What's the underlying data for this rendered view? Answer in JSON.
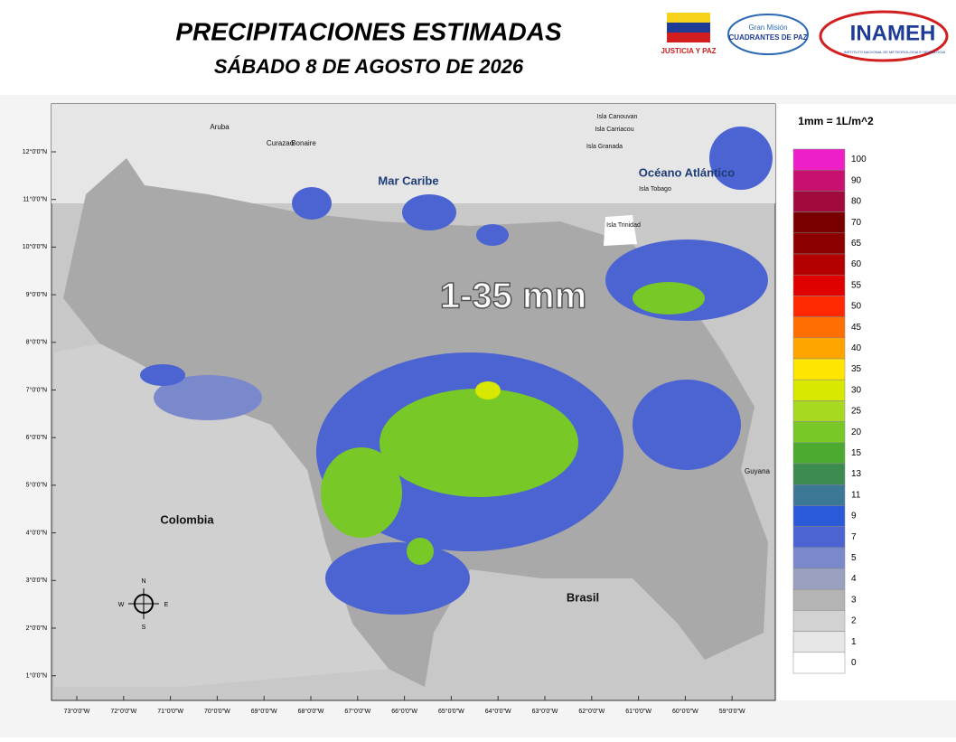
{
  "header": {
    "title": "PRECIPITACIONES ESTIMADAS",
    "subtitle": "SÁBADO 8  DE AGOSTO DE 2026"
  },
  "logos": {
    "justicia": "JUSTICIA Y PAZ",
    "mision_top": "Gran Misión",
    "mision": "CUADRANTES DE PAZ",
    "inameh": "INAMEH",
    "inameh_full": "INSTITUTO NACIONAL DE METEOROLOGIA E HIDROLOGIA"
  },
  "map": {
    "headline": "1-35 mm",
    "labels": [
      "Aruba",
      "Curazao",
      "Bonaire",
      "Mar Caribe",
      "Océano Atlántico",
      "Isla Canouvan",
      "Isla Carriacou",
      "Isla Granada",
      "Isla Tobago",
      "Isla Trinidad",
      "Colombia",
      "Brasil",
      "Guyana"
    ],
    "lat_ticks": [
      "12°0'0\"N",
      "11°0'0\"N",
      "10°0'0\"N",
      "9°0'0\"N",
      "8°0'0\"N",
      "7°0'0\"N",
      "6°0'0\"N",
      "5°0'0\"N",
      "4°0'0\"N",
      "3°0'0\"N",
      "2°0'0\"N",
      "1°0'0\"N"
    ],
    "lon_ticks": [
      "73°0'0\"W",
      "72°0'0\"W",
      "71°0'0\"W",
      "70°0'0\"W",
      "69°0'0\"W",
      "68°0'0\"W",
      "67°0'0\"W",
      "66°0'0\"W",
      "65°0'0\"W",
      "64°0'0\"W",
      "63°0'0\"W",
      "62°0'0\"W",
      "61°0'0\"W",
      "60°0'0\"W",
      "59°0'0\"W"
    ],
    "compass": [
      "N",
      "S",
      "E",
      "W"
    ]
  },
  "legend": {
    "title": "1mm = 1L/m^2",
    "levels": [
      {
        "label": "100",
        "color": "#ee1fc6"
      },
      {
        "label": "90",
        "color": "#c8106e"
      },
      {
        "label": "80",
        "color": "#a00a3c"
      },
      {
        "label": "70",
        "color": "#780000"
      },
      {
        "label": "65",
        "color": "#8c0000"
      },
      {
        "label": "60",
        "color": "#b40000"
      },
      {
        "label": "55",
        "color": "#e00000"
      },
      {
        "label": "50",
        "color": "#ff2800"
      },
      {
        "label": "45",
        "color": "#ff6e00"
      },
      {
        "label": "40",
        "color": "#ffa500"
      },
      {
        "label": "35",
        "color": "#ffe600"
      },
      {
        "label": "30",
        "color": "#d8e800"
      },
      {
        "label": "25",
        "color": "#a8d820"
      },
      {
        "label": "20",
        "color": "#78c828"
      },
      {
        "label": "15",
        "color": "#4caa30"
      },
      {
        "label": "13",
        "color": "#3c8c50"
      },
      {
        "label": "11",
        "color": "#3c7896"
      },
      {
        "label": "9",
        "color": "#2a5ad8"
      },
      {
        "label": "7",
        "color": "#4b64d2"
      },
      {
        "label": "5",
        "color": "#7a88cc"
      },
      {
        "label": "4",
        "color": "#9aa0c0"
      },
      {
        "label": "3",
        "color": "#b4b4b4"
      },
      {
        "label": "2",
        "color": "#d2d2d2"
      },
      {
        "label": "1",
        "color": "#e6e6e6"
      },
      {
        "label": "0",
        "color": "#ffffff"
      }
    ]
  }
}
